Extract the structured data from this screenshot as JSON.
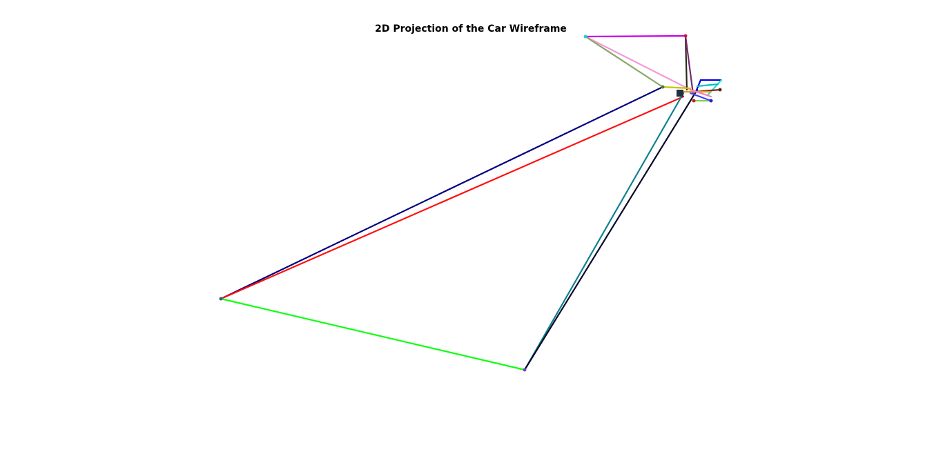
{
  "title": "2D Projection of the Car Wireframe"
}
